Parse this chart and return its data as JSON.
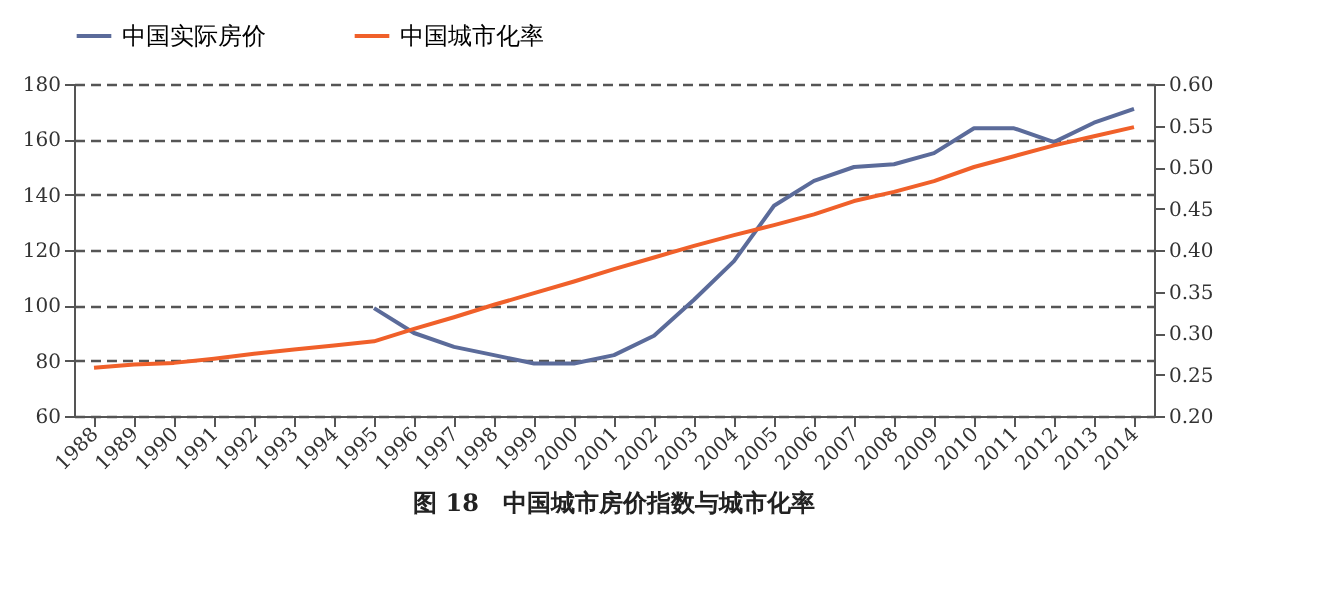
{
  "chart_data": {
    "type": "line",
    "title": "图 18　中国城市房价指数与城市化率",
    "categories": [
      "1988",
      "1989",
      "1990",
      "1991",
      "1992",
      "1993",
      "1994",
      "1995",
      "1996",
      "1997",
      "1998",
      "1999",
      "2000",
      "2001",
      "2002",
      "2003",
      "2004",
      "2005",
      "2006",
      "2007",
      "2008",
      "2009",
      "2010",
      "2011",
      "2012",
      "2013",
      "2014"
    ],
    "series": [
      {
        "name": "中国实际房价",
        "color": "#5b6b9a",
        "values": [
          null,
          null,
          null,
          null,
          null,
          null,
          null,
          99,
          90,
          85,
          82,
          79,
          79,
          82,
          89,
          102,
          116,
          136,
          145,
          150,
          151,
          155,
          164,
          164,
          159,
          166,
          171
        ]
      },
      {
        "name": "中国城市化率",
        "color": "#f0602a",
        "axis": "y2",
        "values": [
          0.258,
          0.262,
          0.264,
          0.269,
          0.275,
          0.28,
          0.285,
          0.29,
          0.305,
          0.319,
          0.334,
          0.348,
          0.362,
          0.377,
          0.391,
          0.405,
          0.418,
          0.43,
          0.443,
          0.459,
          0.47,
          0.483,
          0.5,
          0.513,
          0.526,
          0.537,
          0.548
        ]
      }
    ],
    "ylim": [
      60,
      180
    ],
    "yticks": [
      60,
      80,
      100,
      120,
      140,
      160,
      180
    ],
    "y2lim": [
      0.2,
      0.6
    ],
    "y2ticks": [
      {
        "value": 0.2,
        "label": "0.20"
      },
      {
        "value": 0.25,
        "label": "0.25"
      },
      {
        "value": 0.3,
        "label": "0.30"
      },
      {
        "value": 0.35,
        "label": "0.35"
      },
      {
        "value": 0.4,
        "label": "0.40"
      },
      {
        "value": 0.45,
        "label": "0.45"
      },
      {
        "value": 0.5,
        "label": "0.50"
      },
      {
        "value": 0.55,
        "label": "0.55"
      },
      {
        "value": 0.6,
        "label": "0.60"
      }
    ],
    "grid": "y",
    "legend": "top",
    "line_style": "solid",
    "marker": "none"
  }
}
